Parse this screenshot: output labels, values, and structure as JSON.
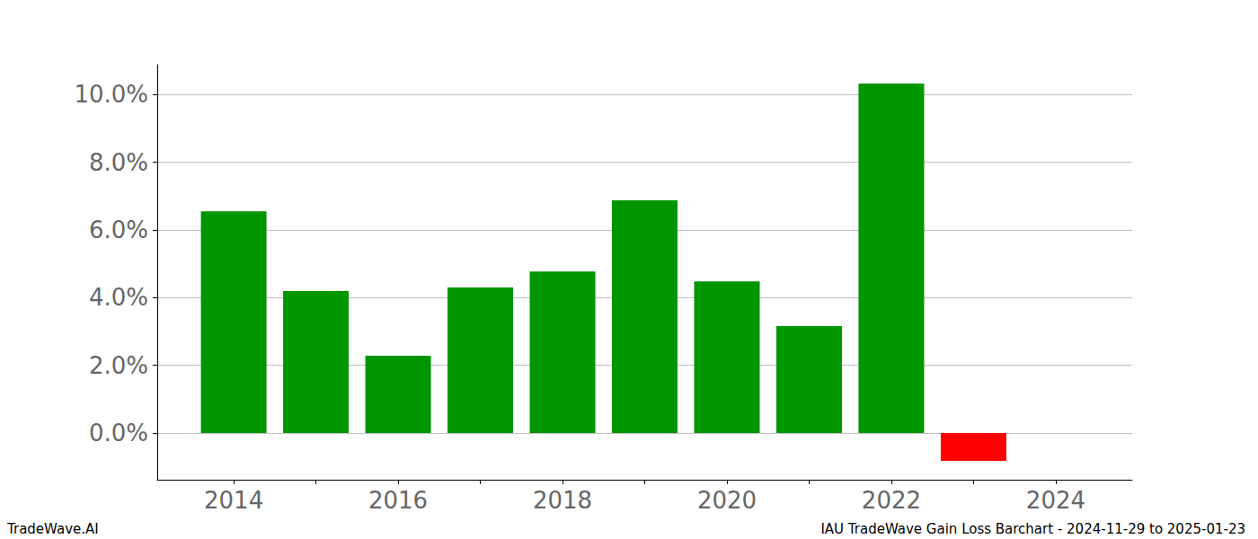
{
  "chart_data": {
    "type": "bar",
    "title": "IAU TradeWave Gain Loss Barchart - 2024-11-29 to 2025-01-23",
    "annotations": [
      "TradeWave.AI"
    ],
    "x": [
      2014,
      2015,
      2016,
      2017,
      2018,
      2019,
      2020,
      2021,
      2022,
      2023
    ],
    "values": [
      6.55,
      4.19,
      2.28,
      4.3,
      4.77,
      6.87,
      4.48,
      3.16,
      10.32,
      -0.82
    ],
    "colors": [
      "#009600",
      "#009600",
      "#009600",
      "#009600",
      "#009600",
      "#009600",
      "#009600",
      "#009600",
      "#009600",
      "#ff0000"
    ],
    "xlim": [
      2013.07,
      2024.93
    ],
    "xticks": [
      2014,
      2016,
      2018,
      2020,
      2022,
      2024
    ],
    "ylim": [
      -1.38,
      10.88
    ],
    "yticks": [
      {
        "value": 0,
        "label": "0.0%"
      },
      {
        "value": 2,
        "label": "2.0%"
      },
      {
        "value": 4,
        "label": "4.0%"
      },
      {
        "value": 6,
        "label": "6.0%"
      },
      {
        "value": 8,
        "label": "8.0%"
      },
      {
        "value": 10,
        "label": "10.0%"
      }
    ],
    "grid": true
  }
}
